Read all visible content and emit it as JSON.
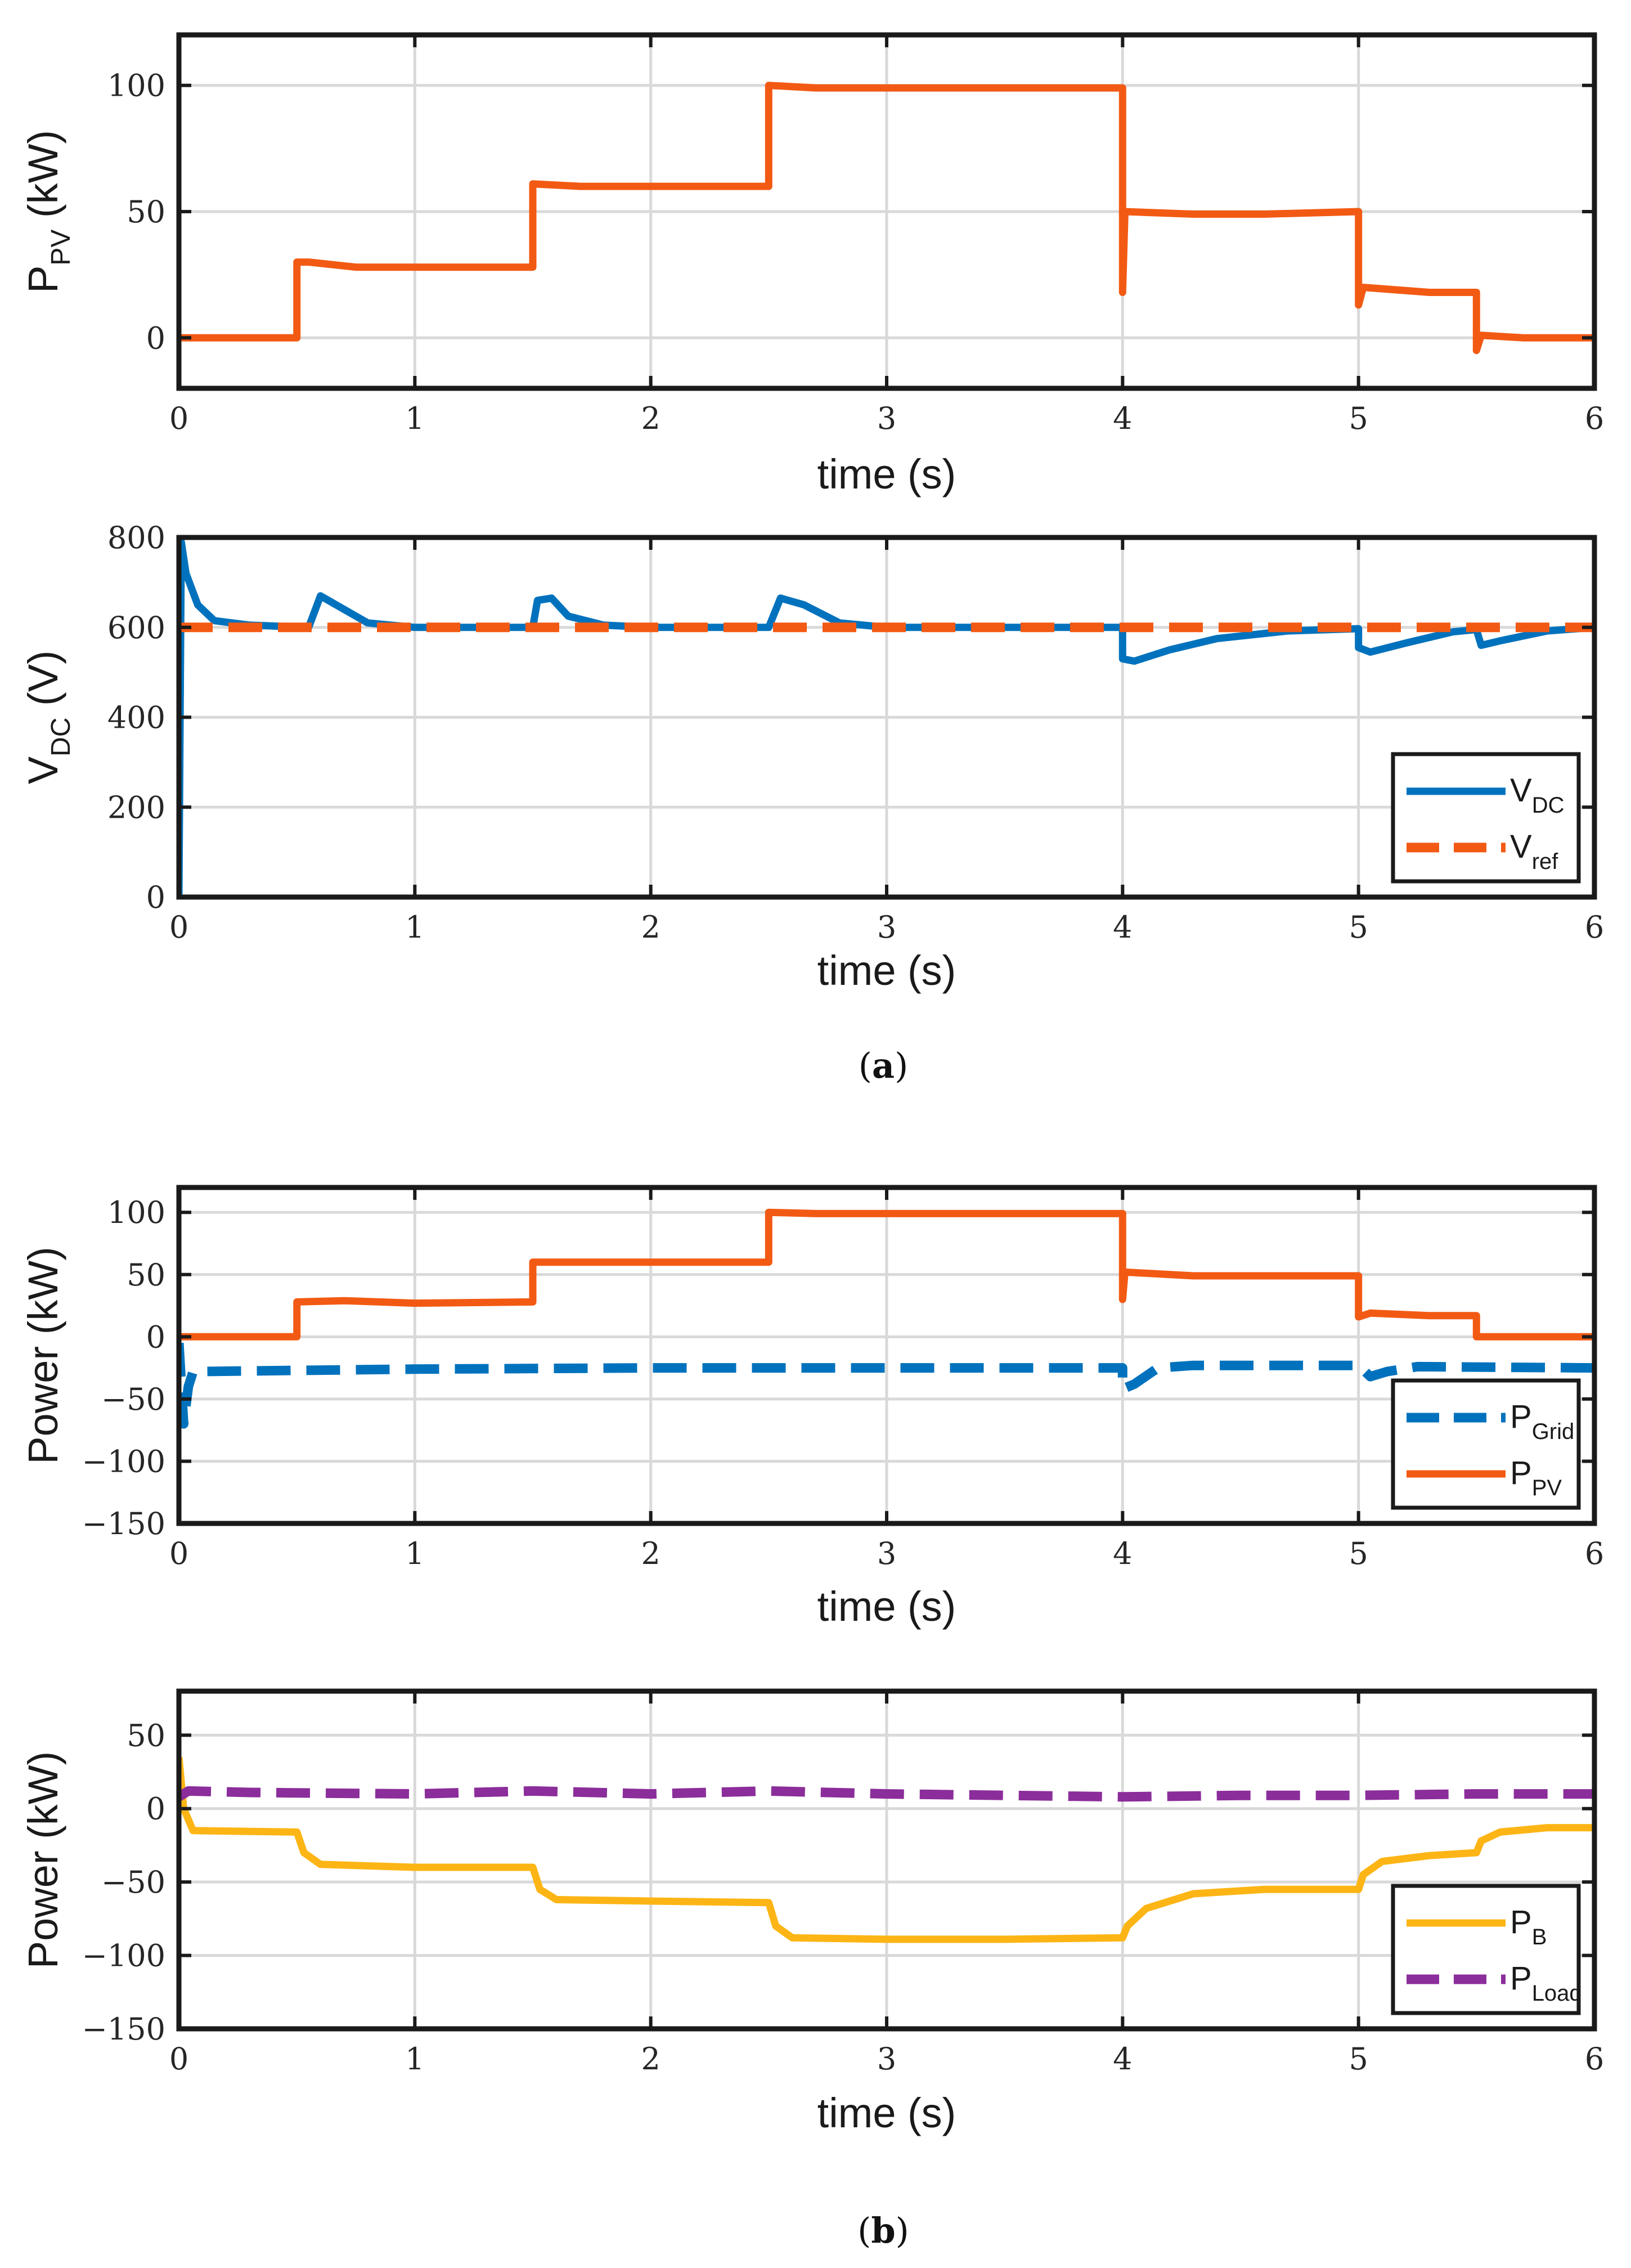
{
  "colors": {
    "blue": "#0072BD",
    "orange": "#F25A14",
    "yellow": "#FDB515",
    "purple": "#8B2D9A",
    "grid": "#d9d9d9",
    "axis": "#1a1a1a"
  },
  "captions": {
    "a": "a",
    "b": "b"
  },
  "chart_data": [
    {
      "id": "ppv",
      "type": "line",
      "xlabel": "time (s)",
      "ylabel": {
        "main": "P",
        "sub": "PV",
        "rest": " (kW)"
      },
      "xlim": [
        0,
        6
      ],
      "ylim": [
        -20,
        120
      ],
      "xticks": [
        "0",
        "1",
        "2",
        "3",
        "4",
        "5",
        "6"
      ],
      "yticks": [
        {
          "v": 0,
          "t": "0"
        },
        {
          "v": 50,
          "t": "50"
        },
        {
          "v": 100,
          "t": "100"
        }
      ],
      "series": [
        {
          "name": "P_PV",
          "color": "orange",
          "dash": "solid",
          "points": [
            [
              0,
              0
            ],
            [
              0.5,
              0
            ],
            [
              0.5,
              30
            ],
            [
              0.55,
              30
            ],
            [
              0.75,
              28
            ],
            [
              1.0,
              28
            ],
            [
              1.5,
              28
            ],
            [
              1.5,
              61
            ],
            [
              1.7,
              60
            ],
            [
              2.0,
              60
            ],
            [
              2.5,
              60
            ],
            [
              2.5,
              100
            ],
            [
              2.7,
              99
            ],
            [
              3.0,
              99
            ],
            [
              3.5,
              99
            ],
            [
              4.0,
              99
            ],
            [
              4.0,
              18
            ],
            [
              4.01,
              50
            ],
            [
              4.3,
              49
            ],
            [
              4.6,
              49
            ],
            [
              5.0,
              50
            ],
            [
              5.0,
              13
            ],
            [
              5.02,
              20
            ],
            [
              5.3,
              18
            ],
            [
              5.5,
              18
            ],
            [
              5.5,
              -5
            ],
            [
              5.52,
              1
            ],
            [
              5.7,
              0
            ],
            [
              6.0,
              0
            ]
          ]
        }
      ]
    },
    {
      "id": "vdc",
      "type": "line",
      "xlabel": "time (s)",
      "ylabel": {
        "main": "V",
        "sub": "DC",
        "rest": " (V)"
      },
      "xlim": [
        0,
        6
      ],
      "ylim": [
        0,
        800
      ],
      "xticks": [
        "0",
        "1",
        "2",
        "3",
        "4",
        "5",
        "6"
      ],
      "yticks": [
        {
          "v": 0,
          "t": "0"
        },
        {
          "v": 200,
          "t": "200"
        },
        {
          "v": 400,
          "t": "400"
        },
        {
          "v": 600,
          "t": "600"
        },
        {
          "v": 800,
          "t": "800"
        }
      ],
      "legend": {
        "position": "bottom-right",
        "entries": [
          {
            "main": "V",
            "sub": "DC",
            "series": 0
          },
          {
            "main": "V",
            "sub": "ref",
            "series": 1
          }
        ]
      },
      "series": [
        {
          "name": "V_DC",
          "color": "blue",
          "dash": "solid",
          "points": [
            [
              0,
              0
            ],
            [
              0.01,
              790
            ],
            [
              0.03,
              720
            ],
            [
              0.08,
              650
            ],
            [
              0.15,
              615
            ],
            [
              0.3,
              605
            ],
            [
              0.55,
              600
            ],
            [
              0.6,
              670
            ],
            [
              0.7,
              640
            ],
            [
              0.8,
              610
            ],
            [
              1.0,
              600
            ],
            [
              1.5,
              600
            ],
            [
              1.52,
              660
            ],
            [
              1.58,
              665
            ],
            [
              1.65,
              625
            ],
            [
              1.8,
              605
            ],
            [
              2.0,
              600
            ],
            [
              2.5,
              600
            ],
            [
              2.55,
              665
            ],
            [
              2.65,
              650
            ],
            [
              2.8,
              610
            ],
            [
              3.0,
              600
            ],
            [
              3.5,
              600
            ],
            [
              4.0,
              600
            ],
            [
              4.0,
              530
            ],
            [
              4.05,
              525
            ],
            [
              4.2,
              550
            ],
            [
              4.4,
              575
            ],
            [
              4.7,
              592
            ],
            [
              5.0,
              597
            ],
            [
              5.0,
              555
            ],
            [
              5.05,
              545
            ],
            [
              5.2,
              565
            ],
            [
              5.4,
              590
            ],
            [
              5.5,
              595
            ],
            [
              5.52,
              560
            ],
            [
              5.6,
              570
            ],
            [
              5.8,
              592
            ],
            [
              6.0,
              600
            ]
          ]
        },
        {
          "name": "V_ref",
          "color": "orange",
          "dash": "dash",
          "points": [
            [
              0,
              600
            ],
            [
              6,
              600
            ]
          ]
        }
      ]
    },
    {
      "id": "grid_pv",
      "type": "line",
      "xlabel": "time (s)",
      "ylabel": {
        "main": "Power (kW)",
        "sub": "",
        "rest": ""
      },
      "xlim": [
        0,
        6
      ],
      "ylim": [
        -150,
        120
      ],
      "xticks": [
        "0",
        "1",
        "2",
        "3",
        "4",
        "5",
        "6"
      ],
      "yticks": [
        {
          "v": -150,
          "t": "−150"
        },
        {
          "v": -100,
          "t": "−100"
        },
        {
          "v": -50,
          "t": "−50"
        },
        {
          "v": 0,
          "t": "0"
        },
        {
          "v": 50,
          "t": "50"
        },
        {
          "v": 100,
          "t": "100"
        }
      ],
      "legend": {
        "position": "bottom-right",
        "entries": [
          {
            "main": "P",
            "sub": "Grid",
            "series": 0
          },
          {
            "main": "P",
            "sub": "PV",
            "series": 1
          }
        ]
      },
      "series": [
        {
          "name": "P_Grid",
          "color": "blue",
          "dash": "dash",
          "points": [
            [
              0,
              -5
            ],
            [
              0.02,
              -70
            ],
            [
              0.04,
              -40
            ],
            [
              0.06,
              -28
            ],
            [
              0.5,
              -27
            ],
            [
              1.0,
              -26
            ],
            [
              2.0,
              -25
            ],
            [
              3.0,
              -25
            ],
            [
              4.0,
              -25
            ],
            [
              4.0,
              -42
            ],
            [
              4.05,
              -38
            ],
            [
              4.15,
              -25
            ],
            [
              4.3,
              -23
            ],
            [
              5.0,
              -23
            ],
            [
              5.05,
              -32
            ],
            [
              5.12,
              -28
            ],
            [
              5.25,
              -24
            ],
            [
              6.0,
              -25
            ]
          ]
        },
        {
          "name": "P_PV",
          "color": "orange",
          "dash": "solid",
          "points": [
            [
              0,
              0
            ],
            [
              0.5,
              0
            ],
            [
              0.5,
              28
            ],
            [
              0.7,
              29
            ],
            [
              1.0,
              27
            ],
            [
              1.5,
              28
            ],
            [
              1.5,
              60
            ],
            [
              1.7,
              60
            ],
            [
              2.0,
              60
            ],
            [
              2.5,
              60
            ],
            [
              2.5,
              100
            ],
            [
              2.7,
              99
            ],
            [
              3.0,
              99
            ],
            [
              4.0,
              99
            ],
            [
              4.0,
              30
            ],
            [
              4.01,
              52
            ],
            [
              4.3,
              49
            ],
            [
              5.0,
              49
            ],
            [
              5.0,
              16
            ],
            [
              5.05,
              19
            ],
            [
              5.3,
              17
            ],
            [
              5.5,
              17
            ],
            [
              5.5,
              0
            ],
            [
              6.0,
              0
            ]
          ]
        }
      ]
    },
    {
      "id": "b_load",
      "type": "line",
      "xlabel": "time (s)",
      "ylabel": {
        "main": "Power (kW)",
        "sub": "",
        "rest": ""
      },
      "xlim": [
        0,
        6
      ],
      "ylim": [
        -150,
        80
      ],
      "xticks": [
        "0",
        "1",
        "2",
        "3",
        "4",
        "5",
        "6"
      ],
      "yticks": [
        {
          "v": -150,
          "t": "−150"
        },
        {
          "v": -100,
          "t": "−100"
        },
        {
          "v": -50,
          "t": "−50"
        },
        {
          "v": 0,
          "t": "0"
        },
        {
          "v": 50,
          "t": "50"
        }
      ],
      "legend": {
        "position": "bottom-right",
        "entries": [
          {
            "main": "P",
            "sub": "B",
            "series": 0
          },
          {
            "main": "P",
            "sub": "Load",
            "series": 1
          }
        ]
      },
      "series": [
        {
          "name": "P_B",
          "color": "yellow",
          "dash": "solid",
          "points": [
            [
              0,
              35
            ],
            [
              0.02,
              0
            ],
            [
              0.06,
              -15
            ],
            [
              0.5,
              -16
            ],
            [
              0.53,
              -30
            ],
            [
              0.6,
              -38
            ],
            [
              1.0,
              -40
            ],
            [
              1.5,
              -40
            ],
            [
              1.53,
              -55
            ],
            [
              1.6,
              -62
            ],
            [
              2.0,
              -63
            ],
            [
              2.5,
              -64
            ],
            [
              2.53,
              -80
            ],
            [
              2.6,
              -88
            ],
            [
              3.0,
              -89
            ],
            [
              3.5,
              -89
            ],
            [
              4.0,
              -88
            ],
            [
              4.02,
              -80
            ],
            [
              4.1,
              -68
            ],
            [
              4.3,
              -58
            ],
            [
              4.6,
              -55
            ],
            [
              5.0,
              -55
            ],
            [
              5.02,
              -45
            ],
            [
              5.1,
              -36
            ],
            [
              5.3,
              -32
            ],
            [
              5.5,
              -30
            ],
            [
              5.52,
              -22
            ],
            [
              5.6,
              -16
            ],
            [
              5.8,
              -13
            ],
            [
              6.0,
              -13
            ]
          ]
        },
        {
          "name": "P_Load",
          "color": "purple",
          "dash": "dash",
          "points": [
            [
              0,
              8
            ],
            [
              0.04,
              12
            ],
            [
              0.3,
              11
            ],
            [
              1.0,
              10
            ],
            [
              1.5,
              12
            ],
            [
              2.0,
              10
            ],
            [
              2.5,
              12
            ],
            [
              3.0,
              10
            ],
            [
              4.0,
              8
            ],
            [
              4.5,
              9
            ],
            [
              5.0,
              9
            ],
            [
              5.5,
              10
            ],
            [
              6.0,
              10
            ]
          ]
        }
      ]
    }
  ]
}
